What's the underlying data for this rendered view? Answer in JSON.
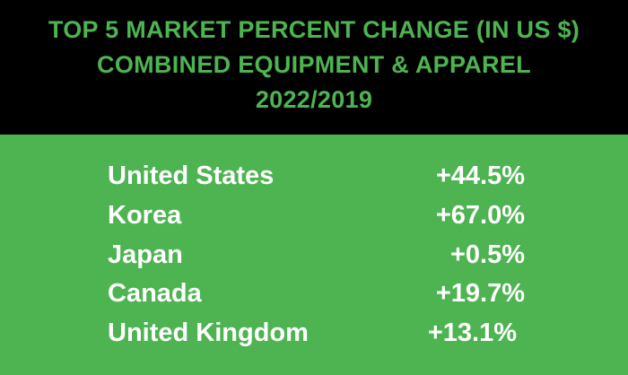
{
  "header": {
    "line1": "TOP 5 MARKET PERCENT CHANGE (IN US $)",
    "line2": "COMBINED EQUIPMENT & APPAREL",
    "line3": "2022/2019"
  },
  "rows": [
    {
      "country": "United States",
      "change": "+44.5%"
    },
    {
      "country": "Korea",
      "change": "+67.0%"
    },
    {
      "country": "Japan",
      "change": "+0.5%"
    },
    {
      "country": "Canada",
      "change": "+19.7%"
    },
    {
      "country": "United Kingdom",
      "change": "+13.1%"
    }
  ],
  "colors": {
    "header_background": "#000000",
    "accent_green": "#4db451",
    "row_text": "#ffffff"
  }
}
